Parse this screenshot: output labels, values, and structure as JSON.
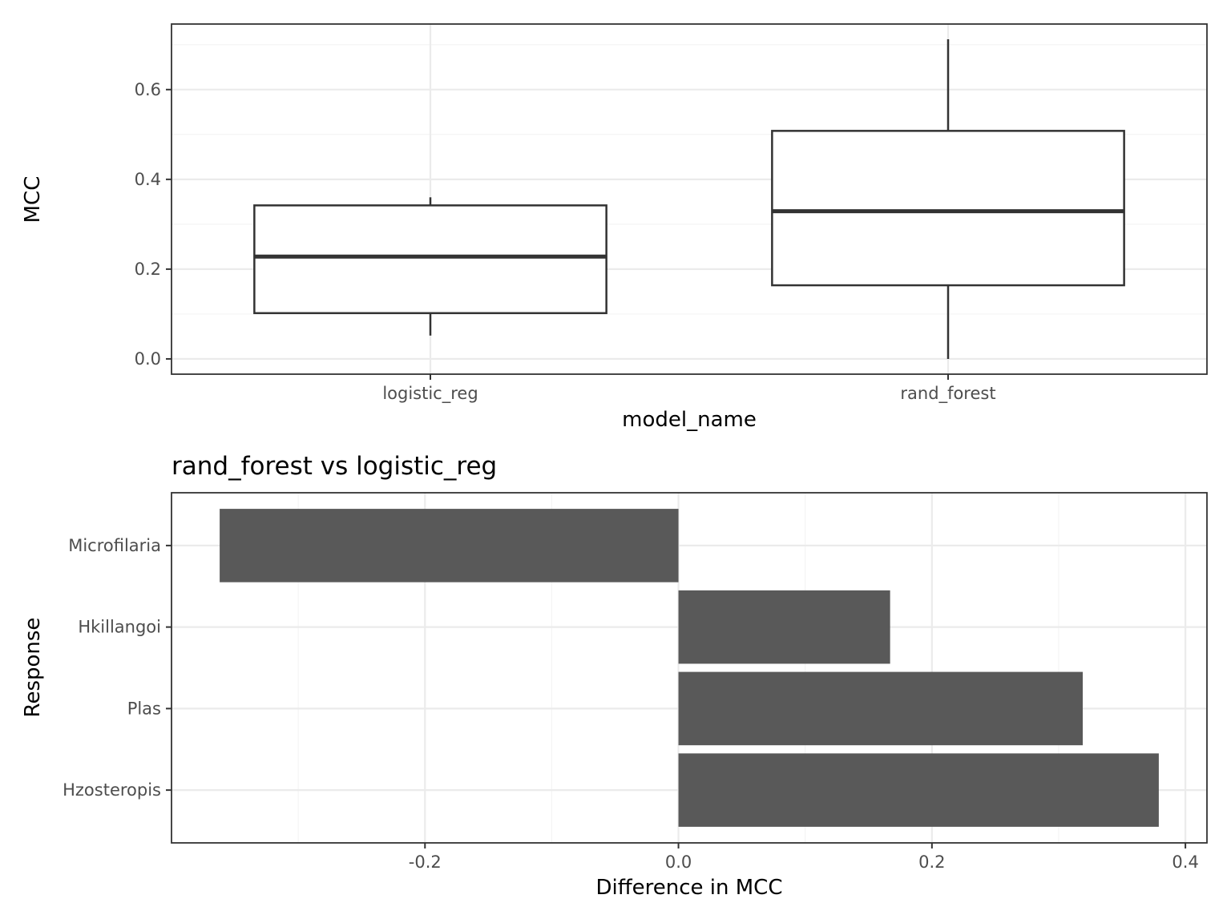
{
  "chart_data": [
    {
      "type": "box",
      "categories": [
        "logistic_reg",
        "rand_forest"
      ],
      "boxes": [
        {
          "category": "logistic_reg",
          "min": 0.052,
          "q1": 0.102,
          "median": 0.228,
          "q3": 0.342,
          "max": 0.36
        },
        {
          "category": "rand_forest",
          "min": 0.0,
          "q1": 0.164,
          "median": 0.329,
          "q3": 0.508,
          "max": 0.712
        }
      ],
      "title": "",
      "xlabel": "model_name",
      "ylabel": "MCC",
      "ylim": [
        -0.034,
        0.746
      ],
      "yticks": [
        0.0,
        0.2,
        0.4,
        0.6
      ],
      "ytick_labels": [
        "0.0",
        "0.2",
        "0.4",
        "0.6"
      ],
      "grid": true,
      "colors": {
        "box_fill": "#ffffff",
        "box_line": "#333333",
        "grid_major": "#ebebeb",
        "grid_minor": "#f4f4f4",
        "panel_border": "#333333"
      }
    },
    {
      "type": "bar",
      "orientation": "horizontal",
      "categories": [
        "Microfilaria",
        "Hkillangoi",
        "Plas",
        "Hzosteropis"
      ],
      "values": [
        -0.362,
        0.167,
        0.319,
        0.379
      ],
      "title": "rand_forest vs logistic_reg",
      "xlabel": "Difference in MCC",
      "ylabel": "Response",
      "xlim": [
        -0.4,
        0.417
      ],
      "xticks": [
        -0.2,
        0.0,
        0.2,
        0.4
      ],
      "xtick_labels": [
        "-0.2",
        "0.0",
        "0.2",
        "0.4"
      ],
      "grid": true,
      "colors": {
        "bar_fill": "#595959",
        "grid_major": "#ebebeb",
        "grid_minor": "#f4f4f4",
        "panel_border": "#333333"
      }
    }
  ]
}
